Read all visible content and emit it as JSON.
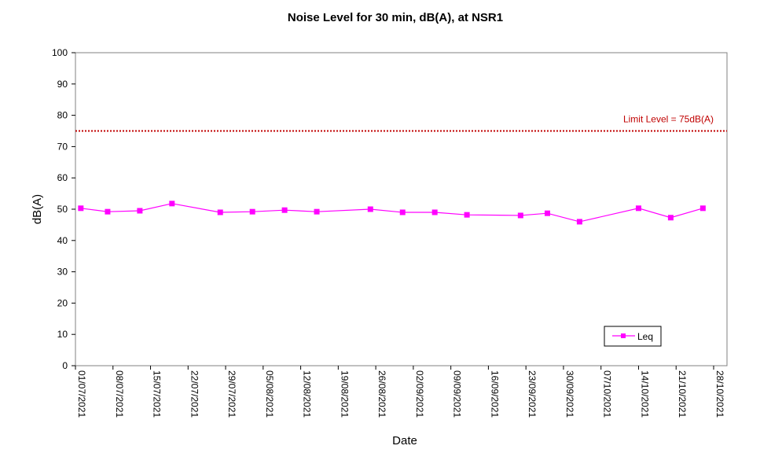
{
  "chart_data": {
    "type": "line",
    "title": "Noise Level for 30 min, dB(A), at NSR1",
    "xlabel": "Date",
    "ylabel": "dB(A)",
    "ylim": [
      0,
      100
    ],
    "yticks": [
      "0",
      "10",
      "20",
      "30",
      "40",
      "50",
      "60",
      "70",
      "80",
      "90",
      "100"
    ],
    "xtick_labels": [
      "01/07/2021",
      "08/07/2021",
      "15/07/2021",
      "22/07/2021",
      "29/07/2021",
      "05/08/2021",
      "12/08/2021",
      "19/08/2021",
      "26/08/2021",
      "02/09/2021",
      "09/09/2021",
      "16/09/2021",
      "23/09/2021",
      "30/09/2021",
      "07/10/2021",
      "14/10/2021",
      "21/10/2021",
      "28/10/2021"
    ],
    "xlim": [
      "2021-07-01",
      "2021-10-28"
    ],
    "grid": false,
    "legend_position": "bottom-right",
    "limit_line": {
      "value": 75,
      "label": "Limit Level  = 75dB(A)",
      "color": "#c00000",
      "style": "dotted"
    },
    "series": [
      {
        "name": "Leq",
        "color": "#ff00ff",
        "marker": "square",
        "points": [
          {
            "x": "2021-07-02",
            "y": 50.3
          },
          {
            "x": "2021-07-07",
            "y": 49.2
          },
          {
            "x": "2021-07-13",
            "y": 49.5
          },
          {
            "x": "2021-07-19",
            "y": 51.8
          },
          {
            "x": "2021-07-28",
            "y": 49.0
          },
          {
            "x": "2021-08-03",
            "y": 49.2
          },
          {
            "x": "2021-08-09",
            "y": 49.7
          },
          {
            "x": "2021-08-15",
            "y": 49.2
          },
          {
            "x": "2021-08-25",
            "y": 50.0
          },
          {
            "x": "2021-08-31",
            "y": 49.0
          },
          {
            "x": "2021-09-06",
            "y": 49.0
          },
          {
            "x": "2021-09-12",
            "y": 48.2
          },
          {
            "x": "2021-09-22",
            "y": 48.0
          },
          {
            "x": "2021-09-27",
            "y": 48.7
          },
          {
            "x": "2021-10-03",
            "y": 46.0
          },
          {
            "x": "2021-10-14",
            "y": 50.3
          },
          {
            "x": "2021-10-20",
            "y": 47.3
          },
          {
            "x": "2021-10-26",
            "y": 50.3
          }
        ]
      }
    ]
  }
}
